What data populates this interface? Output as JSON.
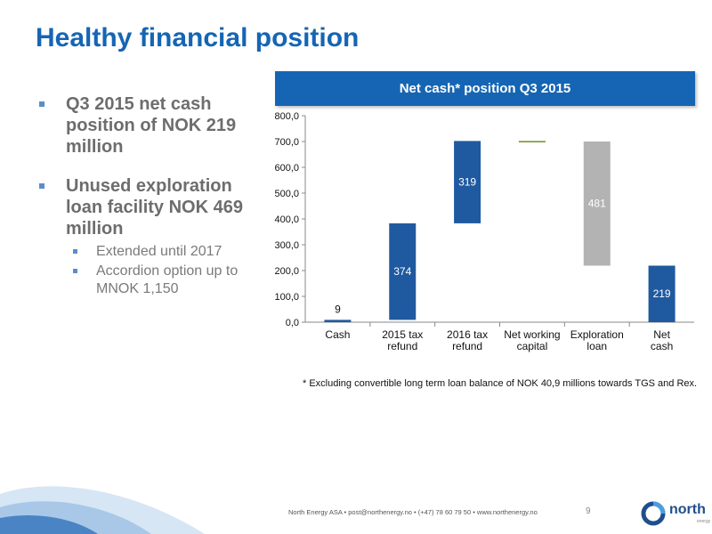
{
  "page": {
    "title": "Healthy financial position"
  },
  "bullets": [
    {
      "text": "Q3 2015 net cash position of NOK 219 million",
      "sub": []
    },
    {
      "text": "Unused exploration loan facility NOK 469 million",
      "sub": [
        "Extended until 2017",
        "Accordion option up to MNOK 1,150"
      ]
    }
  ],
  "chart_data": {
    "type": "bar",
    "subtype": "waterfall",
    "title": "Net cash* position Q3 2015",
    "categories": [
      "Cash",
      "2015 tax refund",
      "2016 tax refund",
      "Net working capital",
      "Exploration loan",
      "Net cash"
    ],
    "bars": [
      {
        "category": "Cash",
        "start": 0,
        "end": 9,
        "label": "9",
        "color": "#1f5aa0"
      },
      {
        "category": "2015 tax refund",
        "start": 9,
        "end": 383,
        "label": "374",
        "color": "#1f5aa0"
      },
      {
        "category": "2016 tax refund",
        "start": 383,
        "end": 702,
        "label": "319",
        "color": "#1f5aa0"
      },
      {
        "category": "Net working capital",
        "start": 702,
        "end": 700,
        "label": "",
        "color": "#6b8e23"
      },
      {
        "category": "Exploration loan",
        "start": 700,
        "end": 219,
        "label": "481",
        "color": "#b3b3b3"
      },
      {
        "category": "Net cash",
        "start": 0,
        "end": 219,
        "label": "219",
        "color": "#1f5aa0"
      }
    ],
    "ylim": [
      0,
      800
    ],
    "yticks": [
      "0,0",
      "100,0",
      "200,0",
      "300,0",
      "400,0",
      "500,0",
      "600,0",
      "700,0",
      "800,0"
    ],
    "grid": false,
    "xlabel": "",
    "ylabel": ""
  },
  "footnote": "* Excluding convertible long term loan balance of NOK 40,9 millions towards TGS and Rex.",
  "footer": {
    "text": "North Energy ASA  •  post@northenergy.no  •  (+47) 78 60 79 50  •  www.northenergy.no",
    "page_number": "9",
    "logo_text": "north",
    "logo_sub": "energy"
  },
  "colors": {
    "accent": "#1565b4",
    "bar_blue": "#1f5aa0",
    "bar_grey": "#b3b3b3"
  }
}
